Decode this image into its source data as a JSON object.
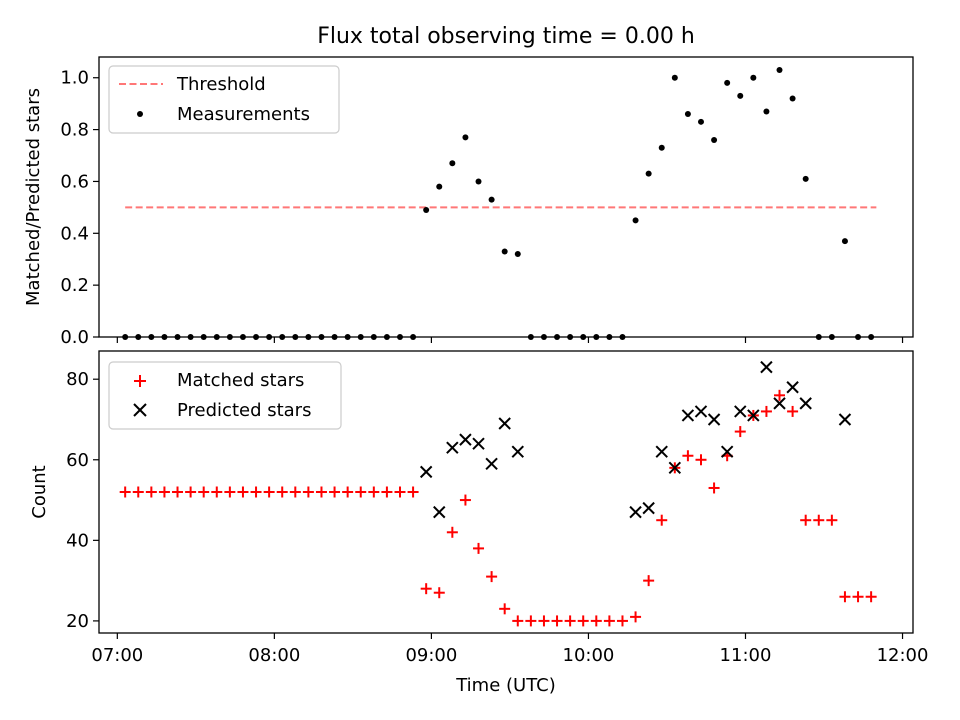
{
  "figure": {
    "title": "Flux total observing time = 0.00 h"
  },
  "chart_data": [
    {
      "type": "scatter",
      "panel": "top",
      "xlabel": "",
      "ylabel": "Matched/Predicted stars",
      "ylim": [
        0.0,
        1.08
      ],
      "yticks": [
        0.0,
        0.2,
        0.4,
        0.6,
        0.8,
        1.0
      ],
      "ytick_labels": [
        "0.0",
        "0.2",
        "0.4",
        "0.6",
        "0.8",
        "1.0"
      ],
      "xlim": [
        "06:53",
        "12:04"
      ],
      "xticks": [
        "07:00",
        "08:00",
        "09:00",
        "10:00",
        "11:00",
        "12:00"
      ],
      "xtick_labels_visible": false,
      "legend_position": "upper-left",
      "series": [
        {
          "name": "Threshold",
          "kind": "line",
          "style": "dashed",
          "color": "#ff7777",
          "x": [
            "07:03",
            "11:50"
          ],
          "y": [
            0.5,
            0.5
          ]
        },
        {
          "name": "Measurements",
          "kind": "scatter",
          "marker": "dot",
          "color": "#000000",
          "x": [
            "07:03",
            "07:08",
            "07:13",
            "07:18",
            "07:23",
            "07:28",
            "07:33",
            "07:38",
            "07:43",
            "07:48",
            "07:53",
            "07:58",
            "08:03",
            "08:08",
            "08:13",
            "08:18",
            "08:23",
            "08:28",
            "08:33",
            "08:38",
            "08:43",
            "08:48",
            "08:53",
            "08:58",
            "09:03",
            "09:08",
            "09:13",
            "09:18",
            "09:23",
            "09:28",
            "09:33",
            "09:38",
            "09:43",
            "09:48",
            "09:53",
            "09:58",
            "10:03",
            "10:08",
            "10:13",
            "10:18",
            "10:23",
            "10:28",
            "10:33",
            "10:38",
            "10:43",
            "10:48",
            "10:53",
            "10:58",
            "11:03",
            "11:08",
            "11:13",
            "11:18",
            "11:23",
            "11:28",
            "11:33",
            "11:38",
            "11:43",
            "11:48"
          ],
          "y": [
            0.0,
            0.0,
            0.0,
            0.0,
            0.0,
            0.0,
            0.0,
            0.0,
            0.0,
            0.0,
            0.0,
            0.0,
            0.0,
            0.0,
            0.0,
            0.0,
            0.0,
            0.0,
            0.0,
            0.0,
            0.0,
            0.0,
            0.0,
            0.49,
            0.58,
            0.67,
            0.77,
            0.6,
            0.53,
            0.33,
            0.32,
            0.0,
            0.0,
            0.0,
            0.0,
            0.0,
            0.0,
            0.0,
            0.0,
            0.45,
            0.63,
            0.73,
            1.0,
            0.86,
            0.83,
            0.76,
            0.98,
            0.93,
            1.0,
            0.87,
            1.03,
            0.92,
            0.61,
            0.0,
            0.0,
            0.37,
            0.0,
            0.0
          ]
        }
      ]
    },
    {
      "type": "scatter",
      "panel": "bottom",
      "xlabel": "Time (UTC)",
      "ylabel": "Count",
      "ylim": [
        17,
        87
      ],
      "yticks": [
        20,
        40,
        60,
        80
      ],
      "ytick_labels": [
        "20",
        "40",
        "60",
        "80"
      ],
      "xlim": [
        "06:53",
        "12:04"
      ],
      "xticks": [
        "07:00",
        "08:00",
        "09:00",
        "10:00",
        "11:00",
        "12:00"
      ],
      "xtick_labels": [
        "07:00",
        "08:00",
        "09:00",
        "10:00",
        "11:00",
        "12:00"
      ],
      "legend_position": "upper-left",
      "series": [
        {
          "name": "Matched stars",
          "marker": "plus",
          "color": "#ff0000",
          "x": [
            "07:03",
            "07:08",
            "07:13",
            "07:18",
            "07:23",
            "07:28",
            "07:33",
            "07:38",
            "07:43",
            "07:48",
            "07:53",
            "07:58",
            "08:03",
            "08:08",
            "08:13",
            "08:18",
            "08:23",
            "08:28",
            "08:33",
            "08:38",
            "08:43",
            "08:48",
            "08:53",
            "08:58",
            "09:03",
            "09:08",
            "09:13",
            "09:18",
            "09:23",
            "09:28",
            "09:33",
            "09:38",
            "09:43",
            "09:48",
            "09:53",
            "09:58",
            "10:03",
            "10:08",
            "10:13",
            "10:18",
            "10:23",
            "10:28",
            "10:33",
            "10:38",
            "10:43",
            "10:48",
            "10:53",
            "10:58",
            "11:03",
            "11:08",
            "11:13",
            "11:18",
            "11:23",
            "11:28",
            "11:33",
            "11:38",
            "11:43",
            "11:48"
          ],
          "y": [
            52,
            52,
            52,
            52,
            52,
            52,
            52,
            52,
            52,
            52,
            52,
            52,
            52,
            52,
            52,
            52,
            52,
            52,
            52,
            52,
            52,
            52,
            52,
            28,
            27,
            42,
            50,
            38,
            31,
            23,
            20,
            20,
            20,
            20,
            20,
            20,
            20,
            20,
            20,
            21,
            30,
            45,
            58,
            61,
            60,
            53,
            61,
            67,
            71,
            72,
            76,
            72,
            45,
            45,
            45,
            26,
            26,
            26
          ]
        },
        {
          "name": "Predicted stars",
          "marker": "x",
          "color": "#000000",
          "x": [
            "08:58",
            "09:03",
            "09:08",
            "09:13",
            "09:18",
            "09:23",
            "09:28",
            "09:33",
            "10:18",
            "10:23",
            "10:28",
            "10:33",
            "10:38",
            "10:43",
            "10:48",
            "10:53",
            "10:58",
            "11:03",
            "11:08",
            "11:13",
            "11:18",
            "11:23",
            "11:38"
          ],
          "y": [
            57,
            47,
            63,
            65,
            64,
            59,
            69,
            62,
            47,
            48,
            62,
            58,
            71,
            72,
            70,
            62,
            72,
            71,
            83,
            74,
            78,
            74,
            70
          ]
        }
      ]
    }
  ]
}
